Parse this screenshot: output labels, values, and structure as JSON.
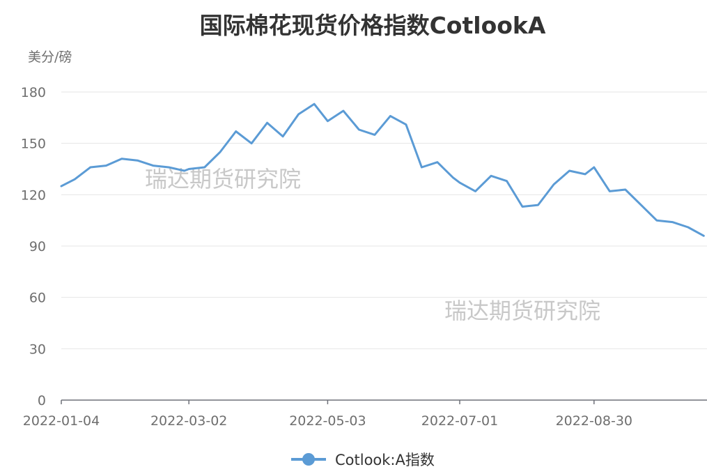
{
  "chart_data": {
    "type": "line",
    "title": "国际棉花现货价格指数CotlookA",
    "ylabel": "美分/磅",
    "xlabel": "",
    "ylim": [
      0,
      180
    ],
    "yticks": [
      0,
      30,
      60,
      90,
      120,
      150,
      180
    ],
    "xticks": [
      "2022-01-04",
      "2022-03-02",
      "2022-05-03",
      "2022-07-01",
      "2022-08-30"
    ],
    "grid": true,
    "legend_position": "bottom-center",
    "watermarks": [
      "瑞达期货研究院",
      "瑞达期货研究院"
    ],
    "line_color": "#5b9bd5",
    "series": [
      {
        "name": "Cotlook:A指数",
        "x": [
          "2022-01-04",
          "2022-01-10",
          "2022-01-17",
          "2022-01-24",
          "2022-01-31",
          "2022-02-07",
          "2022-02-14",
          "2022-02-21",
          "2022-02-28",
          "2022-03-02",
          "2022-03-09",
          "2022-03-16",
          "2022-03-23",
          "2022-03-30",
          "2022-04-06",
          "2022-04-13",
          "2022-04-20",
          "2022-04-27",
          "2022-05-03",
          "2022-05-10",
          "2022-05-17",
          "2022-05-24",
          "2022-05-31",
          "2022-06-07",
          "2022-06-14",
          "2022-06-21",
          "2022-06-28",
          "2022-07-01",
          "2022-07-08",
          "2022-07-15",
          "2022-07-22",
          "2022-07-29",
          "2022-08-05",
          "2022-08-12",
          "2022-08-19",
          "2022-08-26",
          "2022-08-30",
          "2022-09-06",
          "2022-09-13",
          "2022-09-20",
          "2022-09-27",
          "2022-10-04",
          "2022-10-11",
          "2022-10-18"
        ],
        "values": [
          125,
          129,
          136,
          137,
          141,
          140,
          137,
          136,
          134,
          135,
          136,
          145,
          157,
          150,
          162,
          154,
          167,
          173,
          163,
          169,
          158,
          155,
          166,
          161,
          136,
          139,
          130,
          127,
          122,
          131,
          128,
          113,
          114,
          126,
          134,
          132,
          136,
          122,
          123,
          114,
          105,
          104,
          101,
          96
        ]
      }
    ]
  }
}
